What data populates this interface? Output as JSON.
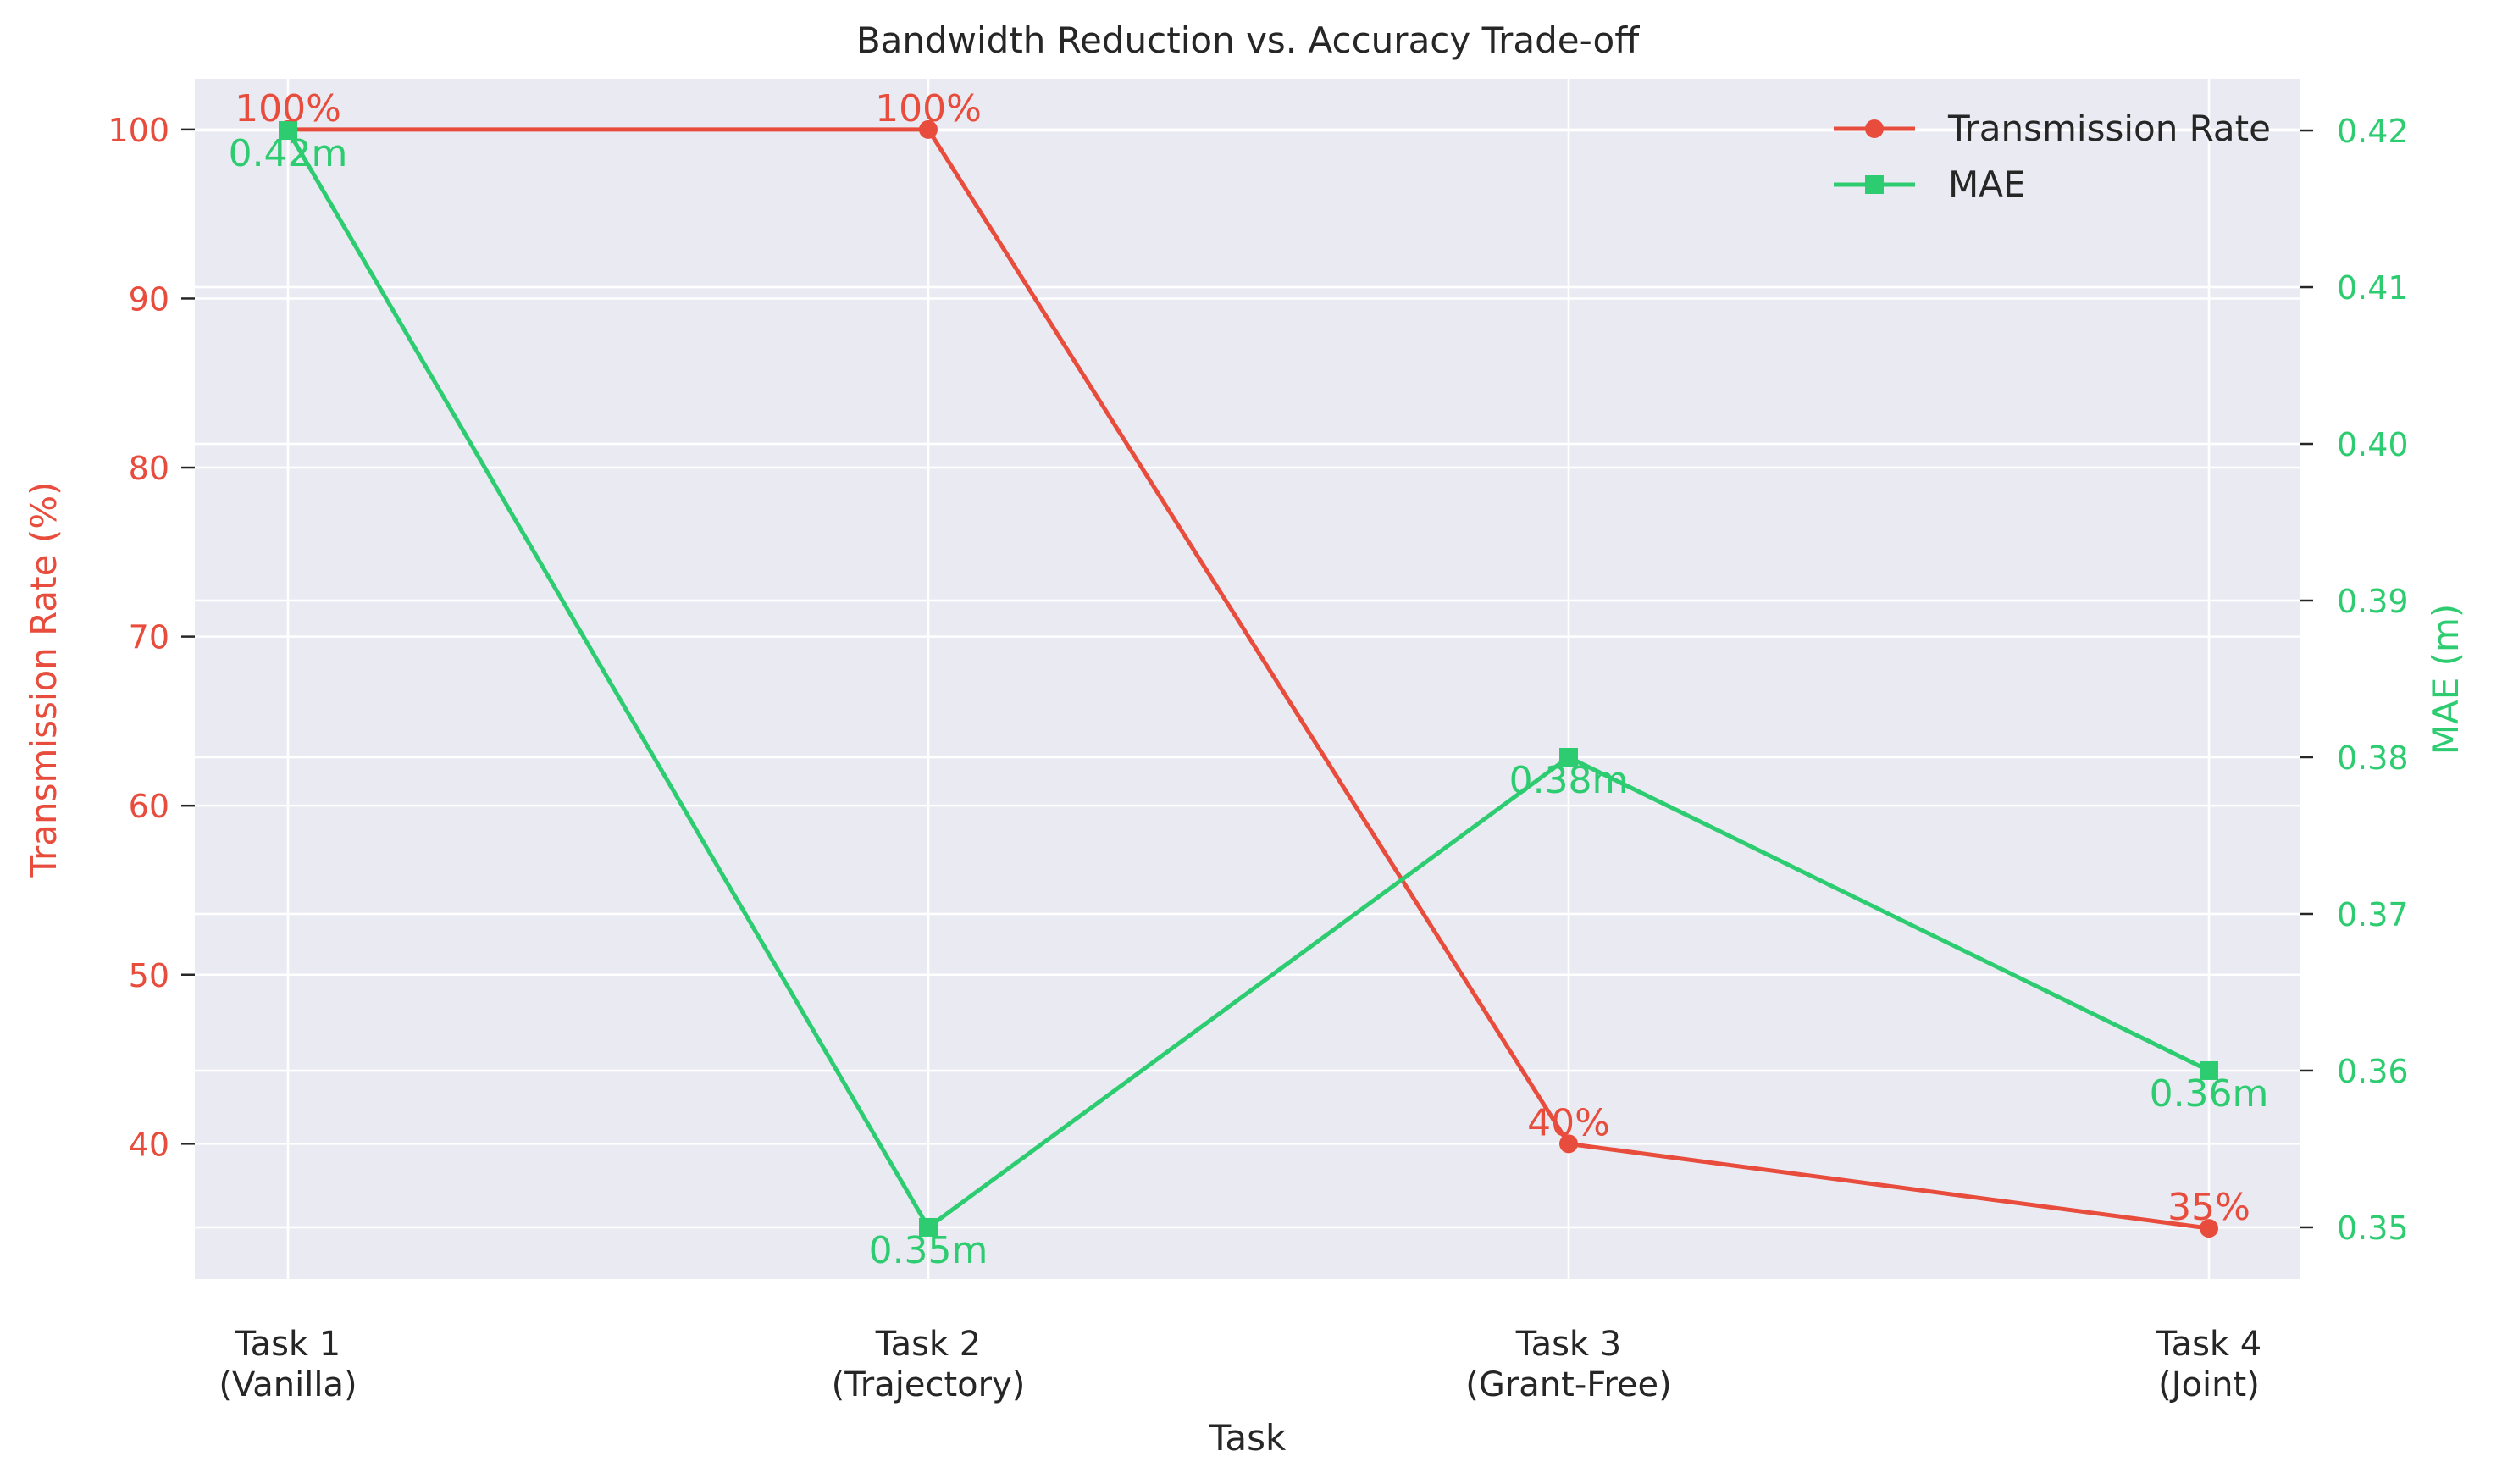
{
  "chart_data": {
    "type": "line",
    "title": "Bandwidth Reduction vs. Accuracy Trade-off",
    "xlabel": "Task",
    "categories": [
      [
        "Task 1",
        "(Vanilla)"
      ],
      [
        "Task 2",
        "(Trajectory)"
      ],
      [
        "Task 3",
        "(Grant-Free)"
      ],
      [
        "Task 4",
        "(Joint)"
      ]
    ],
    "y_left": {
      "label": "Transmission Rate (%)",
      "range": [
        32,
        103
      ],
      "ticks": [
        40,
        50,
        60,
        70,
        80,
        90,
        100
      ],
      "color": "#e74c3c"
    },
    "y_right": {
      "label": "MAE (m)",
      "range": [
        0.3467,
        0.4233
      ],
      "ticks": [
        0.35,
        0.36,
        0.37,
        0.38,
        0.39,
        0.4,
        0.41,
        0.42
      ],
      "tick_labels": [
        "0.35",
        "0.36",
        "0.37",
        "0.38",
        "0.39",
        "0.40",
        "0.41",
        "0.42"
      ],
      "color": "#2ecc71"
    },
    "series": [
      {
        "name": "Transmission Rate",
        "axis": "left",
        "color": "#e74c3c",
        "marker": "circle",
        "values": [
          100,
          100,
          40,
          35
        ],
        "labels": [
          "100%",
          "100%",
          "40%",
          "35%"
        ]
      },
      {
        "name": "MAE",
        "axis": "right",
        "color": "#2ecc71",
        "marker": "square",
        "values": [
          0.42,
          0.35,
          0.38,
          0.36
        ],
        "labels": [
          "0.42m",
          "0.35m",
          "0.38m",
          "0.36m"
        ]
      }
    ],
    "legend": "top-right",
    "grid": true,
    "background": "#eaeaf2",
    "grid_color": "#ffffff"
  }
}
